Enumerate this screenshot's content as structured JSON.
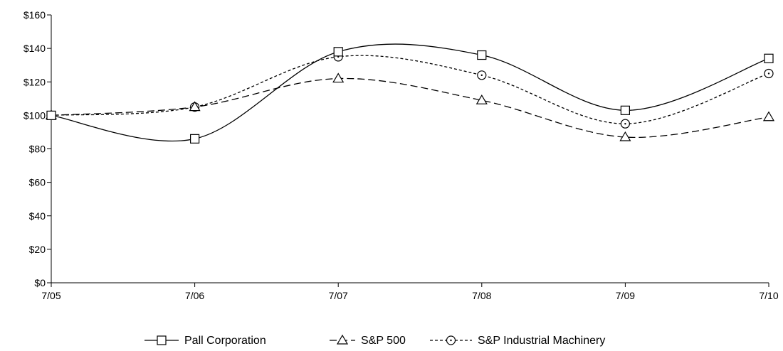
{
  "chart_data": {
    "type": "line",
    "title": "",
    "xlabel": "",
    "ylabel": "",
    "categories": [
      "7/05",
      "7/06",
      "7/07",
      "7/08",
      "7/09",
      "7/10"
    ],
    "ylim": [
      0,
      160
    ],
    "yticks": [
      0,
      20,
      40,
      60,
      80,
      100,
      120,
      140,
      160
    ],
    "ytick_labels": [
      "$0",
      "$20",
      "$40",
      "$60",
      "$80",
      "$100",
      "$120",
      "$140",
      "$160"
    ],
    "grid": false,
    "legend_position": "bottom",
    "series": [
      {
        "name": "Pall Corporation",
        "values": [
          100,
          86,
          138,
          136,
          103,
          134
        ],
        "marker": "square",
        "line": "solid",
        "color": "#000000"
      },
      {
        "name": "S&P 500",
        "values": [
          100,
          105,
          122,
          109,
          87,
          99
        ],
        "marker": "triangle",
        "line": "dashed",
        "color": "#000000"
      },
      {
        "name": "S&P Industrial Machinery",
        "values": [
          100,
          105,
          135,
          124,
          95,
          125
        ],
        "marker": "circle",
        "line": "dotted",
        "color": "#000000"
      }
    ]
  }
}
